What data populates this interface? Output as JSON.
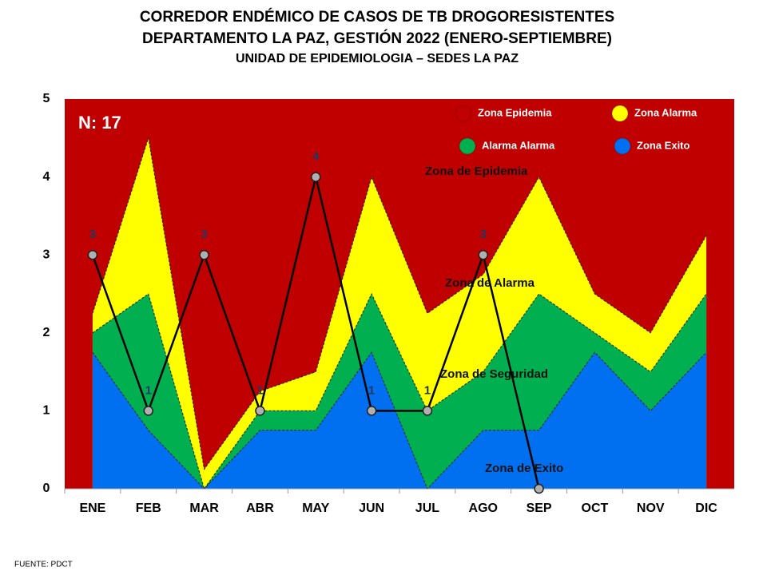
{
  "chart_data": {
    "type": "line",
    "title": [
      "CORREDOR ENDÉMICO DE CASOS DE TB DROGORESISTENTES",
      "DEPARTAMENTO  LA PAZ, GESTIÓN 2022 (ENERO-SEPTIEMBRE)"
    ],
    "subtitle": "UNIDAD DE EPIDEMIOLOGIA – SEDES LA PAZ",
    "source": "FUENTE:   PDCT",
    "count_label": "N: 17",
    "categories": [
      "ENE",
      "FEB",
      "MAR",
      "ABR",
      "MAY",
      "JUN",
      "JUL",
      "AGO",
      "SEP",
      "OCT",
      "NOV",
      "DIC"
    ],
    "ylim": [
      0,
      5
    ],
    "yticks": [
      0,
      1,
      2,
      3,
      4,
      5
    ],
    "epidemic_zone": {
      "name": "Zona Epidemia",
      "color": "#c00000"
    },
    "zones": [
      {
        "name": "Zona  Alarma",
        "color": "#ffff00",
        "values": [
          2.25,
          4.5,
          0.25,
          1.25,
          1.5,
          4,
          2.25,
          2.75,
          4,
          2.5,
          2,
          3.25
        ]
      },
      {
        "name": "Alarma  Alarma",
        "color": "#00b050",
        "values": [
          2,
          2.5,
          0,
          1,
          1,
          2.5,
          1,
          1.5,
          2.5,
          2,
          1.5,
          2.5
        ]
      },
      {
        "name": "Zona Exito",
        "color": "#0070f0",
        "values": [
          1.75,
          0.75,
          0,
          0.75,
          0.75,
          1.75,
          0,
          0.75,
          0.75,
          1.75,
          1,
          1.75
        ]
      }
    ],
    "series": [
      {
        "color": "#000000",
        "values": [
          3,
          1,
          3,
          1,
          4,
          1,
          1,
          3,
          0,
          null,
          null,
          null
        ],
        "value_labels": [
          "3",
          "1",
          "3",
          "1",
          "4",
          "1",
          "1",
          "3",
          null,
          null,
          null,
          null
        ]
      }
    ],
    "annotations": [
      "Zona de Epidemia",
      "Zona de Alarma",
      "Zona de Seguridad",
      "Zona de Exito"
    ]
  }
}
